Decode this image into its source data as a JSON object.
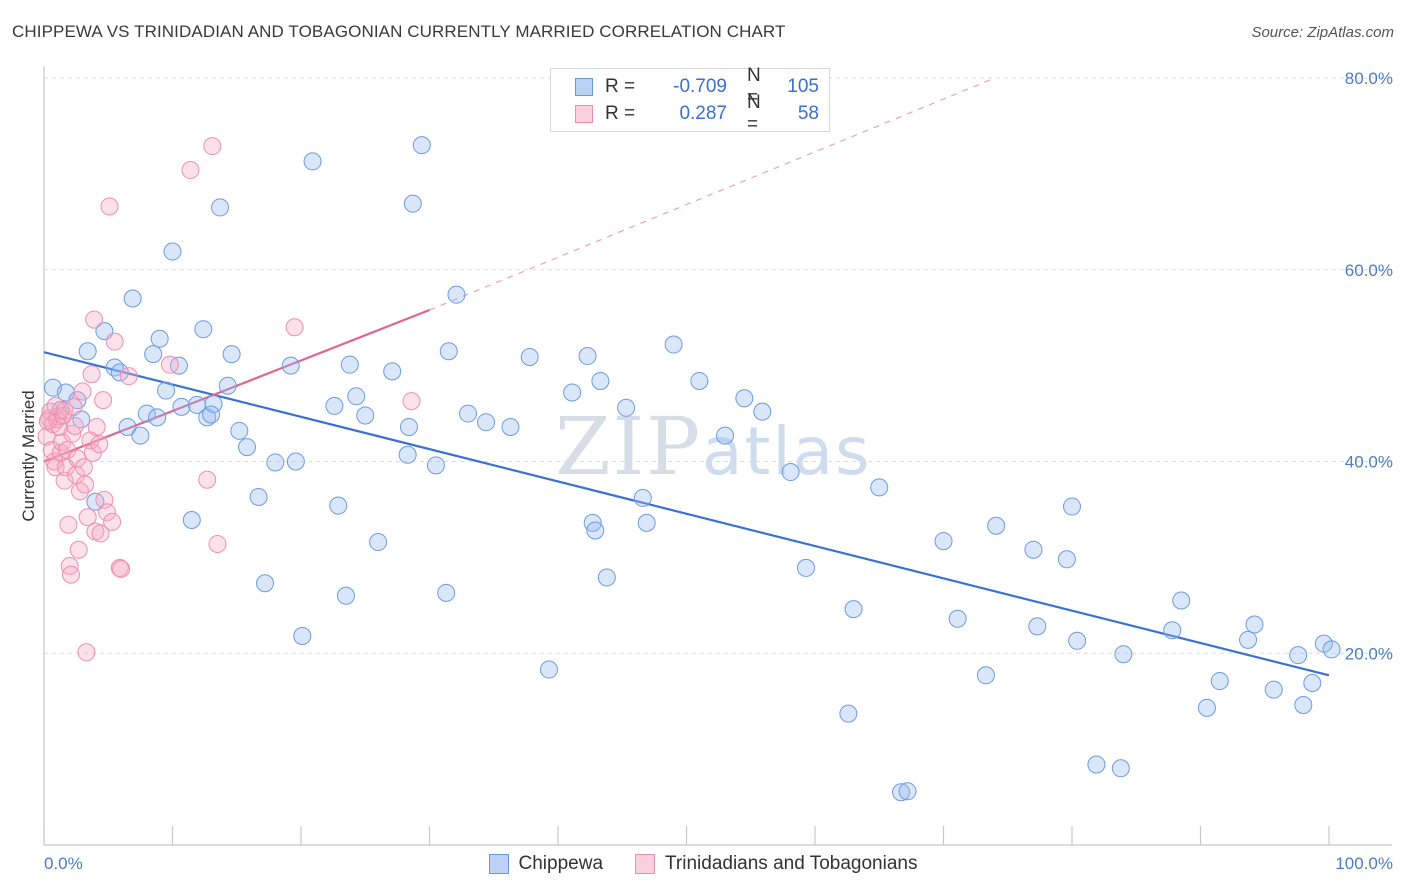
{
  "title": "CHIPPEWA VS TRINIDADIAN AND TOBAGONIAN CURRENTLY MARRIED CORRELATION CHART",
  "source": "Source: ZipAtlas.com",
  "watermark": {
    "zip": "ZIP",
    "atlas": "atlas"
  },
  "colors": {
    "blue": "#5b8fde",
    "pink": "#ee85a8",
    "blue_line": "#3b72d0",
    "pink_line": "#e06690",
    "tick_text": "#4a7cc7"
  },
  "legend": {
    "rows": [
      {
        "r_label": "R =",
        "r_value": "-0.709",
        "n_label": "N =",
        "n_value": "105"
      },
      {
        "r_label": "R =",
        "r_value": "0.287",
        "n_label": "N =",
        "n_value": "58"
      }
    ]
  },
  "chart_data": {
    "type": "scatter",
    "title": "CHIPPEWA VS TRINIDADIAN AND TOBAGONIAN CURRENTLY MARRIED CORRELATION CHART",
    "xlabel": "",
    "ylabel": "Currently Married",
    "xlim": [
      0,
      100
    ],
    "ylim": [
      0,
      80
    ],
    "x_tick_labels": [
      "0.0%",
      "100.0%"
    ],
    "y_ticks": [
      20,
      40,
      60,
      80
    ],
    "y_tick_labels": [
      "20.0%",
      "40.0%",
      "60.0%",
      "80.0%"
    ],
    "grid": true,
    "legend_position": "top-center",
    "series": [
      {
        "name": "Chippewa",
        "color": "#5b8fde",
        "trend": {
          "x": [
            0,
            100
          ],
          "y": [
            51.4,
            17.7
          ]
        },
        "points": [
          [
            0.7,
            47.7
          ],
          [
            1.3,
            45.4
          ],
          [
            1.7,
            47.2
          ],
          [
            2.6,
            46.4
          ],
          [
            2.9,
            44.4
          ],
          [
            3.4,
            51.5
          ],
          [
            4.0,
            35.8
          ],
          [
            4.7,
            53.6
          ],
          [
            5.5,
            49.8
          ],
          [
            5.9,
            49.3
          ],
          [
            6.5,
            43.6
          ],
          [
            6.9,
            57.0
          ],
          [
            7.5,
            42.7
          ],
          [
            8.0,
            45.0
          ],
          [
            8.5,
            51.2
          ],
          [
            8.8,
            44.6
          ],
          [
            9.5,
            47.4
          ],
          [
            10.0,
            61.9
          ],
          [
            10.5,
            50.0
          ],
          [
            10.7,
            45.7
          ],
          [
            11.5,
            33.9
          ],
          [
            11.9,
            45.9
          ],
          [
            12.4,
            53.8
          ],
          [
            12.7,
            44.6
          ],
          [
            13.2,
            46.0
          ],
          [
            13.7,
            66.5
          ],
          [
            14.3,
            47.9
          ],
          [
            14.6,
            51.2
          ],
          [
            15.2,
            43.2
          ],
          [
            15.8,
            41.5
          ],
          [
            16.7,
            36.3
          ],
          [
            17.2,
            27.3
          ],
          [
            18.0,
            39.9
          ],
          [
            19.2,
            50.0
          ],
          [
            19.6,
            40.0
          ],
          [
            20.1,
            21.8
          ],
          [
            20.9,
            71.3
          ],
          [
            22.6,
            45.8
          ],
          [
            22.9,
            35.4
          ],
          [
            23.5,
            26.0
          ],
          [
            23.8,
            50.1
          ],
          [
            24.3,
            46.8
          ],
          [
            26.0,
            31.6
          ],
          [
            27.1,
            49.4
          ],
          [
            28.3,
            40.7
          ],
          [
            28.4,
            43.6
          ],
          [
            28.7,
            66.9
          ],
          [
            29.4,
            73.0
          ],
          [
            30.5,
            39.6
          ],
          [
            31.3,
            26.3
          ],
          [
            31.5,
            51.5
          ],
          [
            32.1,
            57.4
          ],
          [
            33.0,
            45.0
          ],
          [
            34.4,
            44.1
          ],
          [
            36.3,
            43.6
          ],
          [
            37.8,
            50.9
          ],
          [
            39.3,
            18.3
          ],
          [
            41.1,
            47.2
          ],
          [
            42.3,
            51.0
          ],
          [
            42.7,
            33.6
          ],
          [
            42.9,
            32.8
          ],
          [
            43.3,
            48.4
          ],
          [
            43.8,
            27.9
          ],
          [
            45.3,
            45.6
          ],
          [
            46.6,
            36.2
          ],
          [
            46.9,
            33.6
          ],
          [
            49.0,
            52.2
          ],
          [
            51.0,
            48.4
          ],
          [
            53.0,
            42.7
          ],
          [
            54.5,
            46.6
          ],
          [
            55.9,
            45.2
          ],
          [
            58.1,
            38.9
          ],
          [
            59.3,
            28.9
          ],
          [
            62.6,
            13.7
          ],
          [
            63.0,
            24.6
          ],
          [
            65.0,
            37.3
          ],
          [
            66.7,
            5.5
          ],
          [
            67.2,
            5.6
          ],
          [
            70.0,
            31.7
          ],
          [
            71.1,
            23.6
          ],
          [
            73.3,
            17.7
          ],
          [
            74.1,
            33.3
          ],
          [
            77.0,
            30.8
          ],
          [
            77.3,
            22.8
          ],
          [
            79.6,
            29.8
          ],
          [
            80.0,
            35.3
          ],
          [
            80.4,
            21.3
          ],
          [
            81.9,
            8.4
          ],
          [
            83.8,
            8.0
          ],
          [
            84.0,
            19.9
          ],
          [
            87.8,
            22.4
          ],
          [
            88.5,
            25.5
          ],
          [
            90.5,
            14.3
          ],
          [
            91.5,
            17.1
          ],
          [
            93.7,
            21.4
          ],
          [
            94.2,
            23.0
          ],
          [
            95.7,
            16.2
          ],
          [
            97.6,
            19.8
          ],
          [
            98.0,
            14.6
          ],
          [
            98.7,
            16.9
          ],
          [
            99.6,
            21.0
          ],
          [
            100.2,
            20.4
          ],
          [
            13.0,
            44.9
          ],
          [
            25.0,
            44.8
          ],
          [
            9.0,
            52.8
          ]
        ]
      },
      {
        "name": "Trinidadians and Tobagonians",
        "color": "#ee85a8",
        "trend": {
          "x": [
            0,
            30
          ],
          "y": [
            40.0,
            55.8
          ],
          "dashed_extension_to": [
            74,
            80
          ]
        },
        "points": [
          [
            0.2,
            42.6
          ],
          [
            0.4,
            44.5
          ],
          [
            0.5,
            45.2
          ],
          [
            0.6,
            41.2
          ],
          [
            0.7,
            43.9
          ],
          [
            0.8,
            40.0
          ],
          [
            0.9,
            39.4
          ],
          [
            1.0,
            44.4
          ],
          [
            1.1,
            44.7
          ],
          [
            1.2,
            43.6
          ],
          [
            1.3,
            40.9
          ],
          [
            1.4,
            42.0
          ],
          [
            1.5,
            44.8
          ],
          [
            1.6,
            38.0
          ],
          [
            1.7,
            39.4
          ],
          [
            1.8,
            41.2
          ],
          [
            1.9,
            33.4
          ],
          [
            2.0,
            29.1
          ],
          [
            2.1,
            28.2
          ],
          [
            2.2,
            42.9
          ],
          [
            2.4,
            43.7
          ],
          [
            2.5,
            38.6
          ],
          [
            2.6,
            40.3
          ],
          [
            2.7,
            30.8
          ],
          [
            2.8,
            36.9
          ],
          [
            3.0,
            47.3
          ],
          [
            3.1,
            39.4
          ],
          [
            3.2,
            37.6
          ],
          [
            3.3,
            20.1
          ],
          [
            3.4,
            34.2
          ],
          [
            3.6,
            42.2
          ],
          [
            3.7,
            49.1
          ],
          [
            3.8,
            40.9
          ],
          [
            3.9,
            54.8
          ],
          [
            4.0,
            32.7
          ],
          [
            4.1,
            43.6
          ],
          [
            4.3,
            41.8
          ],
          [
            4.6,
            46.4
          ],
          [
            4.7,
            36.0
          ],
          [
            4.9,
            34.7
          ],
          [
            5.1,
            66.6
          ],
          [
            5.3,
            33.7
          ],
          [
            5.5,
            52.5
          ],
          [
            5.9,
            28.9
          ],
          [
            6.0,
            28.8
          ],
          [
            6.6,
            48.9
          ],
          [
            9.8,
            50.1
          ],
          [
            11.4,
            70.4
          ],
          [
            12.7,
            38.1
          ],
          [
            13.1,
            72.9
          ],
          [
            13.5,
            31.4
          ],
          [
            19.5,
            54.0
          ],
          [
            28.6,
            46.3
          ],
          [
            0.3,
            44.2
          ],
          [
            0.9,
            45.8
          ],
          [
            1.6,
            45.3
          ],
          [
            2.3,
            45.7
          ],
          [
            4.4,
            32.5
          ]
        ]
      }
    ]
  }
}
